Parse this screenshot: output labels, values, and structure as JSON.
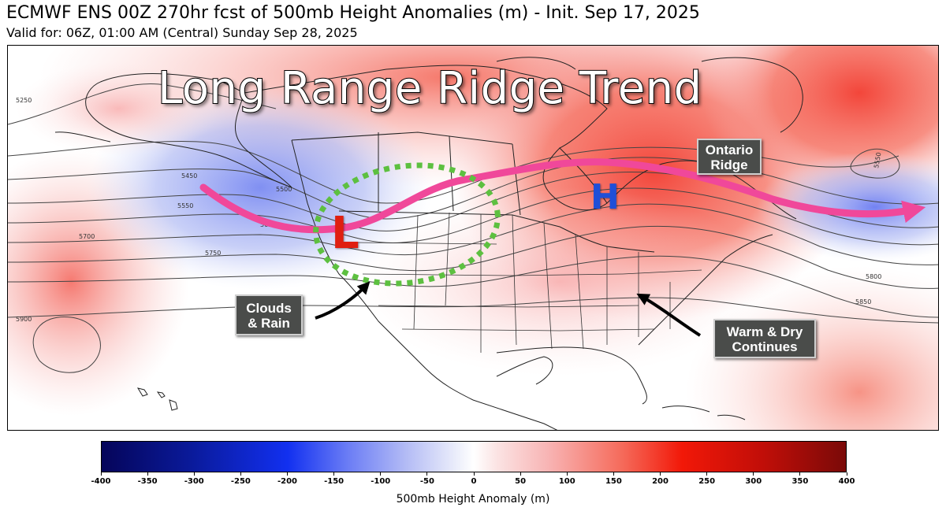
{
  "header": {
    "title": "ECMWF ENS 00Z 270hr fcst of 500mb Height Anomalies (m) - Init. Sep 17, 2025",
    "subtitle": "Valid for: 06Z, 01:00 AM (Central) Sunday Sep 28, 2025"
  },
  "map": {
    "headline": "Long Range Ridge Trend",
    "low_label": "L",
    "high_label": "H",
    "contour_labels": [
      "5250",
      "5450",
      "5500",
      "5550",
      "5650",
      "5700",
      "5750",
      "5800",
      "5850",
      "5900",
      "5550"
    ],
    "callouts": {
      "ontario_line1": "Ontario",
      "ontario_line2": "Ridge",
      "clouds_line1": "Clouds",
      "clouds_line2": "& Rain",
      "warm_line1": "Warm & Dry",
      "warm_line2": "Continues"
    },
    "colors": {
      "jet_arrow": "#f0489a",
      "low_circle": "#5dc040",
      "low_letter": "#e01f10",
      "high_letter": "#1f4fd8",
      "positive_anomaly": "#f23c30",
      "negative_anomaly": "#5a6cf0"
    }
  },
  "colorbar": {
    "label": "500mb Height Anomaly (m)",
    "ticks": [
      "-400",
      "-350",
      "-300",
      "-250",
      "-200",
      "-150",
      "-100",
      "-50",
      "0",
      "50",
      "100",
      "150",
      "200",
      "250",
      "300",
      "350",
      "400"
    ],
    "range": [
      -400,
      400
    ]
  }
}
